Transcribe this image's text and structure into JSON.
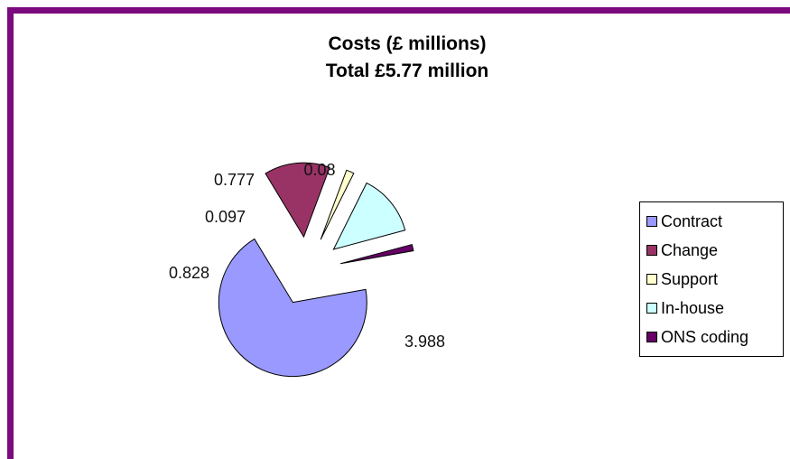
{
  "chart_data": {
    "type": "pie",
    "title": "Costs (£ millions)",
    "subtitle": "Total £5.77 million",
    "categories": [
      "Contract",
      "Change",
      "Support",
      "In-house",
      "ONS coding"
    ],
    "values": [
      3.988,
      0.828,
      0.097,
      0.777,
      0.08
    ],
    "value_labels": [
      "3.988",
      "0.828",
      "0.097",
      "0.777",
      "0.08"
    ],
    "colors": [
      "#9999ff",
      "#993366",
      "#ffffcc",
      "#ccffff",
      "#660066"
    ],
    "exploded": true,
    "legend_position": "right"
  }
}
